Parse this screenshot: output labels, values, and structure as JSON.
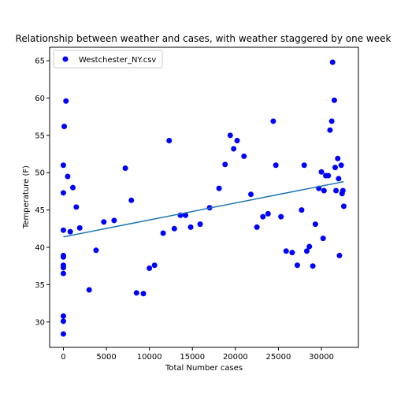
{
  "chart_data": {
    "type": "scatter",
    "title": "Relationship between weather and cases, with weather staggered by one week",
    "xlabel": "Total Number cases",
    "ylabel": "Temperature (F)",
    "xlim": [
      -1600,
      34300
    ],
    "ylim": [
      26.6,
      66.8
    ],
    "xticks": [
      0,
      5000,
      10000,
      15000,
      20000,
      25000,
      30000
    ],
    "yticks": [
      30,
      35,
      40,
      45,
      50,
      55,
      60,
      65
    ],
    "grid": false,
    "legend": "top-left",
    "series": [
      {
        "name": "Westchester_NY.csv",
        "color": "#0000ff",
        "points": [
          [
            0,
            28.4
          ],
          [
            0,
            30.1
          ],
          [
            0,
            30.8
          ],
          [
            0,
            36.5
          ],
          [
            0,
            37.3
          ],
          [
            0,
            37.6
          ],
          [
            0,
            38.7
          ],
          [
            0,
            38.9
          ],
          [
            0,
            42.3
          ],
          [
            0,
            47.3
          ],
          [
            0,
            51.0
          ],
          [
            100,
            56.2
          ],
          [
            300,
            59.6
          ],
          [
            500,
            49.5
          ],
          [
            800,
            42.1
          ],
          [
            1100,
            48.0
          ],
          [
            1500,
            45.4
          ],
          [
            1900,
            42.6
          ],
          [
            3000,
            34.3
          ],
          [
            3800,
            39.6
          ],
          [
            4700,
            43.4
          ],
          [
            5900,
            43.6
          ],
          [
            7200,
            50.6
          ],
          [
            7900,
            46.3
          ],
          [
            8500,
            33.9
          ],
          [
            9300,
            33.8
          ],
          [
            10000,
            37.2
          ],
          [
            10600,
            37.6
          ],
          [
            11600,
            41.9
          ],
          [
            12300,
            54.3
          ],
          [
            12900,
            42.5
          ],
          [
            13600,
            44.3
          ],
          [
            14200,
            44.3
          ],
          [
            14800,
            42.7
          ],
          [
            15900,
            43.1
          ],
          [
            17000,
            45.3
          ],
          [
            18100,
            47.9
          ],
          [
            18800,
            51.1
          ],
          [
            19400,
            55.0
          ],
          [
            19800,
            53.2
          ],
          [
            20200,
            54.3
          ],
          [
            21000,
            52.2
          ],
          [
            21800,
            47.1
          ],
          [
            22500,
            42.7
          ],
          [
            23200,
            44.1
          ],
          [
            23800,
            44.5
          ],
          [
            24400,
            56.9
          ],
          [
            24700,
            51.0
          ],
          [
            25300,
            44.1
          ],
          [
            25900,
            39.5
          ],
          [
            26600,
            39.3
          ],
          [
            27200,
            37.6
          ],
          [
            27700,
            45.0
          ],
          [
            28000,
            51.0
          ],
          [
            28300,
            39.5
          ],
          [
            28600,
            40.1
          ],
          [
            29000,
            37.5
          ],
          [
            29300,
            43.1
          ],
          [
            29700,
            47.9
          ],
          [
            30000,
            50.1
          ],
          [
            30200,
            41.2
          ],
          [
            30300,
            47.6
          ],
          [
            30500,
            49.6
          ],
          [
            30800,
            49.6
          ],
          [
            31000,
            55.7
          ],
          [
            31200,
            56.9
          ],
          [
            31300,
            64.8
          ],
          [
            31500,
            59.7
          ],
          [
            31600,
            50.7
          ],
          [
            31700,
            47.6
          ],
          [
            31900,
            51.9
          ],
          [
            32000,
            49.2
          ],
          [
            32100,
            38.9
          ],
          [
            32300,
            51.0
          ],
          [
            32400,
            47.2
          ],
          [
            32500,
            47.6
          ],
          [
            32600,
            45.5
          ]
        ]
      }
    ],
    "trendline": {
      "color": "#1f77b4",
      "x": [
        0,
        32600
      ],
      "y": [
        41.4,
        48.8
      ]
    }
  }
}
